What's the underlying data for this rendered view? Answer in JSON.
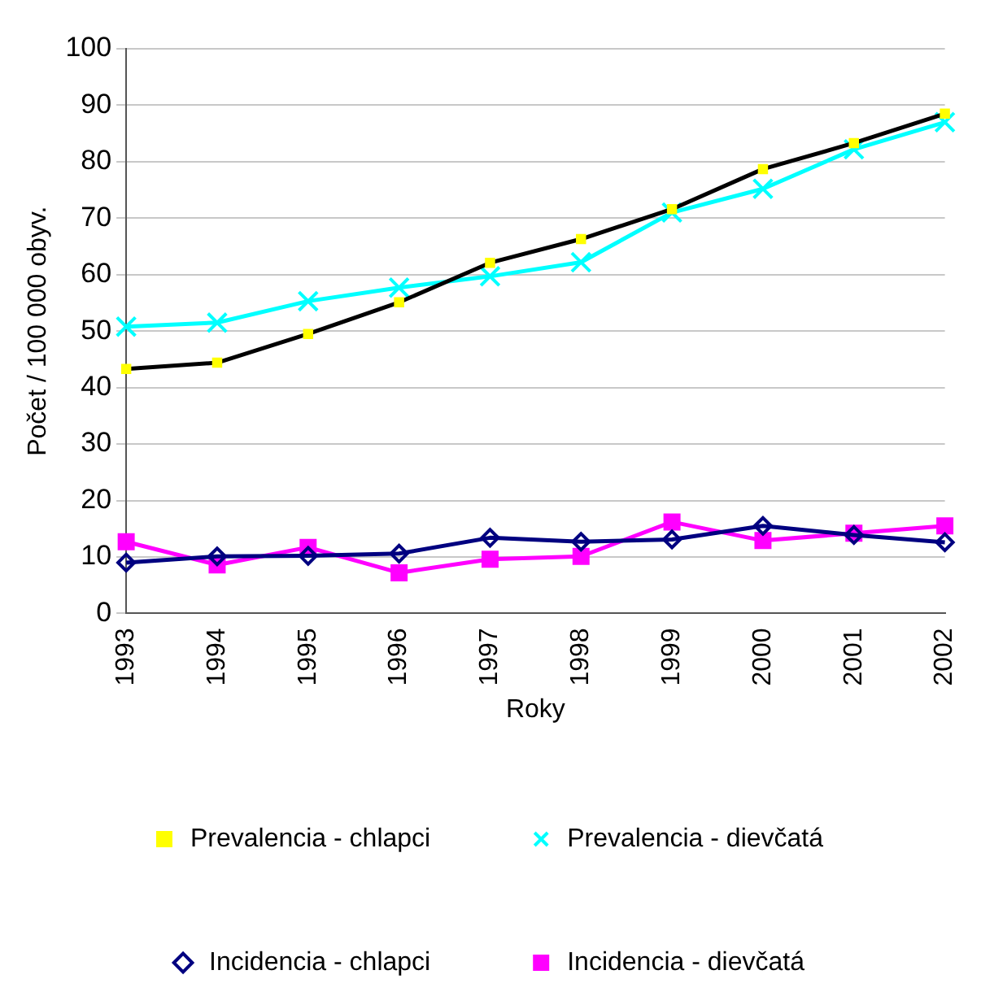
{
  "chart_data": {
    "type": "line",
    "xlabel": "Roky",
    "ylabel": "Počet / 100 000 obyv.",
    "categories": [
      "1993",
      "1994",
      "1995",
      "1996",
      "1997",
      "1998",
      "1999",
      "2000",
      "2001",
      "2002"
    ],
    "ylim": [
      0,
      100
    ],
    "yticks": [
      0,
      10,
      20,
      30,
      40,
      50,
      60,
      70,
      80,
      90,
      100
    ],
    "grid": "y",
    "legend": "bottom",
    "series": [
      {
        "name": "Prevalencia - chlapci",
        "color": "#000000",
        "marker": "square",
        "colors": [
          "#ffff00",
          "#ffff00",
          "#ffff00",
          "#ffff00",
          "#ffff00",
          "#ffff00",
          "#ffff00",
          "#ffff00",
          "#ffff00",
          "#ffff00"
        ],
        "values": [
          43.3,
          44.4,
          49.5,
          55.1,
          62.1,
          66.3,
          71.6,
          78.7,
          83.3,
          88.5
        ]
      },
      {
        "name": "Prevalencia - dievčatá",
        "color": "#00ffff",
        "marker": "cross",
        "values": [
          50.8,
          51.5,
          55.3,
          57.7,
          59.7,
          62.2,
          71.0,
          75.2,
          82.2,
          87.0
        ]
      },
      {
        "name": "Incidencia - chlapci",
        "color": "#000080",
        "marker": "diamond",
        "values": [
          9.0,
          10.1,
          10.2,
          10.6,
          13.4,
          12.7,
          13.1,
          15.5,
          13.9,
          12.6
        ]
      },
      {
        "name": "Incidencia - dievčatá",
        "color": "#ff00ff",
        "marker": "square",
        "values": [
          12.7,
          8.6,
          11.7,
          7.2,
          9.6,
          10.1,
          16.2,
          12.9,
          14.2,
          15.5
        ]
      }
    ]
  }
}
